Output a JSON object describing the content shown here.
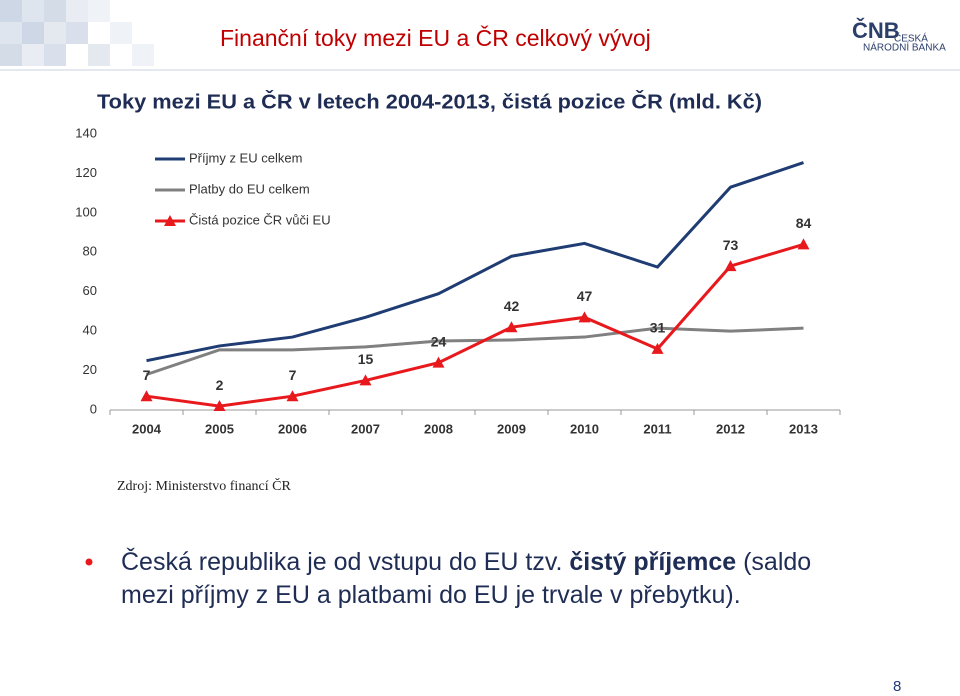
{
  "header": {
    "title": "Finanční toky mezi EU a ČR celkový vývoj",
    "logo_mark": "ČNB",
    "logo_line1": "ČESKÁ",
    "logo_line2": "NÁRODNÍ BANKA"
  },
  "chart_data": {
    "type": "line",
    "title": "Toky mezi EU a ČR v letech 2004-2013, čistá pozice ČR (mld. Kč)",
    "categories": [
      "2004",
      "2005",
      "2006",
      "2007",
      "2008",
      "2009",
      "2010",
      "2011",
      "2012",
      "2013"
    ],
    "series": [
      {
        "name": "Příjmy z EU celkem",
        "color": "#1f3c73",
        "values": [
          25,
          32.5,
          37,
          47,
          59,
          78,
          84.5,
          72.5,
          113,
          125.5
        ]
      },
      {
        "name": "Platby do EU celkem",
        "color": "#808080",
        "values": [
          18,
          30.5,
          30.5,
          32,
          35,
          35.5,
          37,
          41.5,
          40,
          41.5
        ]
      },
      {
        "name": "Čistá pozice ČR vůči EU",
        "color": "#e8191d",
        "marker": "triangle",
        "data_labels": true,
        "values": [
          7,
          2,
          7,
          15,
          24,
          42,
          47,
          31,
          73,
          84
        ]
      }
    ],
    "ylim": [
      0,
      140
    ],
    "yticks": [
      0,
      20,
      40,
      60,
      80,
      100,
      120,
      140
    ],
    "grid": false,
    "legend": "top-left"
  },
  "source": "Zdroj: Ministerstvo financí ČR",
  "bullet": {
    "before": "Česká republika je od vstupu do EU tzv. ",
    "bold": "čistý příjemce",
    "after": " (saldo mezi příjmy z EU a platbami do EU je trvale v přebytku)."
  },
  "page_number": "8"
}
